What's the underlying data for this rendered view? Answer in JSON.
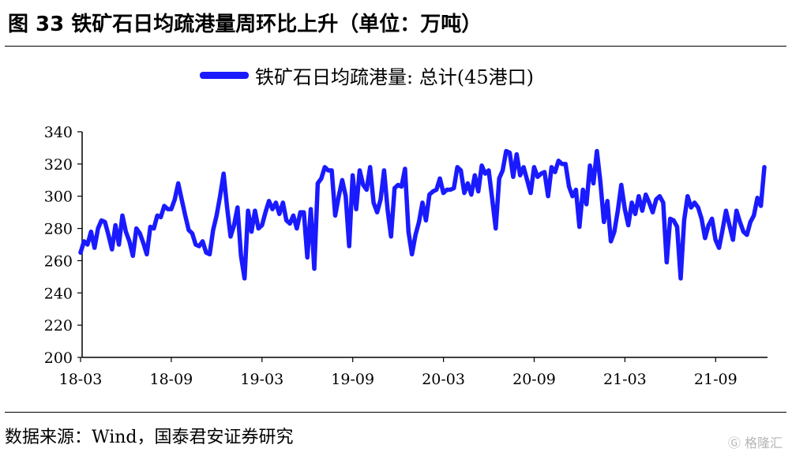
{
  "header": {
    "title": "图 33  铁矿石日均疏港量周环比上升（单位：万吨）"
  },
  "footer": {
    "source": "数据来源：Wind，国泰君安证券研究",
    "watermark": "格隆汇"
  },
  "colors": {
    "series": "#1a1aff",
    "axis": "#000000"
  },
  "chart_data": {
    "type": "line",
    "title": "图 33  铁矿石日均疏港量周环比上升（单位：万吨）",
    "xlabel": "",
    "ylabel": "",
    "ylim": [
      200,
      340
    ],
    "yticks": [
      200,
      220,
      240,
      260,
      280,
      300,
      320,
      340
    ],
    "xticks": [
      "18-03",
      "18-09",
      "19-03",
      "19-09",
      "20-03",
      "20-09",
      "21-03",
      "21-09"
    ],
    "x_start": "2018-03",
    "x_interval": "weekly",
    "grid": false,
    "legend_position": "top",
    "series": [
      {
        "name": "铁矿石日均疏港量: 总计(45港口)",
        "values": [
          265,
          272,
          270,
          278,
          268,
          280,
          285,
          284,
          276,
          267,
          282,
          270,
          288,
          278,
          272,
          263,
          280,
          277,
          271,
          264,
          281,
          280,
          288,
          287,
          294,
          292,
          292,
          298,
          308,
          298,
          288,
          279,
          277,
          270,
          269,
          272,
          265,
          264,
          279,
          288,
          300,
          314,
          293,
          275,
          282,
          293,
          263,
          249,
          291,
          278,
          291,
          280,
          282,
          290,
          297,
          292,
          296,
          289,
          296,
          285,
          283,
          288,
          280,
          290,
          290,
          262,
          292,
          255,
          308,
          311,
          318,
          316,
          316,
          288,
          300,
          310,
          300,
          269,
          313,
          292,
          316,
          307,
          304,
          318,
          296,
          290,
          298,
          316,
          292,
          275,
          305,
          307,
          306,
          317,
          278,
          264,
          276,
          284,
          296,
          285,
          301,
          303,
          304,
          311,
          302,
          304,
          304,
          305,
          318,
          316,
          302,
          308,
          301,
          313,
          303,
          319,
          314,
          316,
          298,
          280,
          311,
          316,
          328,
          327,
          312,
          326,
          313,
          318,
          310,
          302,
          318,
          312,
          314,
          315,
          300,
          318,
          315,
          322,
          320,
          320,
          306,
          300,
          304,
          281,
          304,
          295,
          319,
          308,
          328,
          309,
          284,
          297,
          272,
          278,
          291,
          307,
          292,
          282,
          296,
          289,
          300,
          291,
          301,
          296,
          290,
          298,
          300,
          296,
          259,
          286,
          285,
          281,
          249,
          285,
          300,
          293,
          296,
          293,
          286,
          274,
          282,
          286,
          273,
          268,
          279,
          291,
          282,
          273,
          291,
          284,
          278,
          276,
          284,
          288,
          299,
          294,
          318
        ]
      }
    ]
  }
}
